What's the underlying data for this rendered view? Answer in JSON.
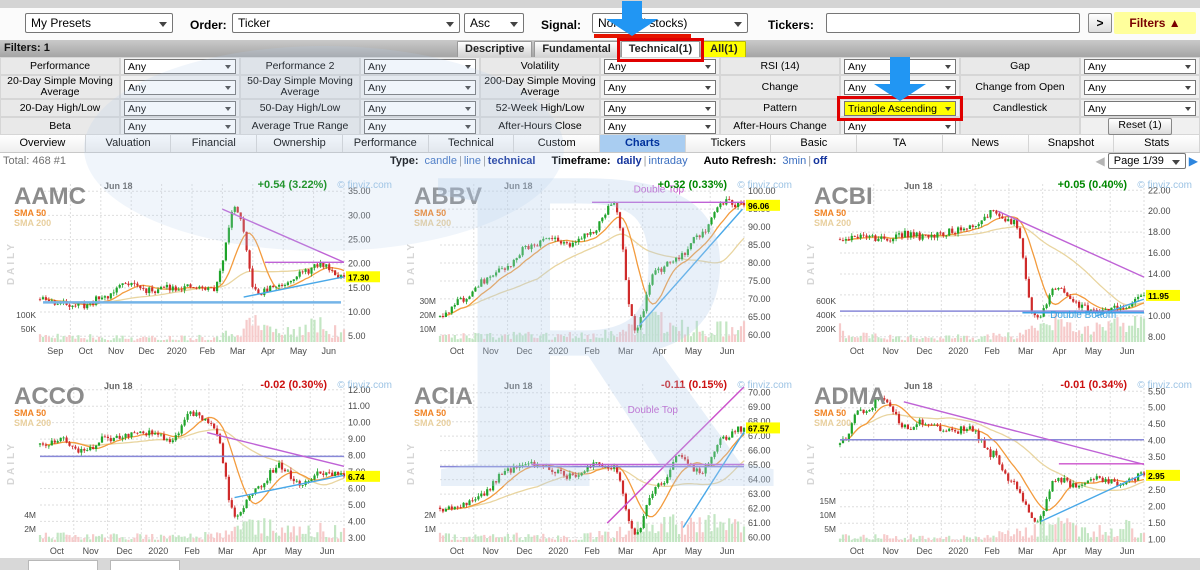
{
  "toolbar": {
    "presets": "My Presets",
    "order_label": "Order:",
    "order": "Ticker",
    "order_dir": "Asc",
    "signal_label": "Signal:",
    "signal": "None (all stocks)",
    "tickers_label": "Tickers:",
    "tickers_value": "",
    "go": ">",
    "filters_toggle": "Filters ▲"
  },
  "filters_bar": {
    "label": "Filters: 1",
    "tabs": [
      "Descriptive",
      "Fundamental",
      "Technical(1)",
      "All(1)"
    ],
    "active_tab": "Technical(1)",
    "yellow_tab": "All(1)"
  },
  "filter_grid": {
    "rows": [
      [
        {
          "label": "Performance",
          "value": "Any"
        },
        {
          "label": "Performance 2",
          "value": "Any"
        },
        {
          "label": "Volatility",
          "value": "Any"
        },
        {
          "label": "RSI (14)",
          "value": "Any"
        },
        {
          "label": "Gap",
          "value": "Any"
        }
      ],
      [
        {
          "label": "20-Day Simple Moving Average",
          "value": "Any"
        },
        {
          "label": "50-Day Simple Moving Average",
          "value": "Any"
        },
        {
          "label": "200-Day Simple Moving Average",
          "value": "Any"
        },
        {
          "label": "Change",
          "value": "Any"
        },
        {
          "label": "Change from Open",
          "value": "Any"
        }
      ],
      [
        {
          "label": "20-Day High/Low",
          "value": "Any"
        },
        {
          "label": "50-Day High/Low",
          "value": "Any"
        },
        {
          "label": "52-Week High/Low",
          "value": "Any"
        },
        {
          "label": "Pattern",
          "value": "Triangle Ascending",
          "selected": true
        },
        {
          "label": "Candlestick",
          "value": "Any"
        }
      ],
      [
        {
          "label": "Beta",
          "value": "Any"
        },
        {
          "label": "Average True Range",
          "value": "Any"
        },
        {
          "label": "After-Hours Close",
          "value": "Any"
        },
        {
          "label": "After-Hours Change",
          "value": "Any"
        },
        {
          "label": "",
          "reset": "Reset (1)"
        }
      ]
    ]
  },
  "nav_tabs": {
    "items": [
      "Overview",
      "Valuation",
      "Financial",
      "Ownership",
      "Performance",
      "Technical",
      "Custom",
      "Charts",
      "Tickers",
      "Basic",
      "TA",
      "News",
      "Snapshot",
      "Stats"
    ],
    "active": "Charts"
  },
  "status_bar": {
    "total": "Total: 468 #1",
    "groups": [
      {
        "label": "Type:",
        "options": [
          "candle",
          "line",
          "technical"
        ],
        "active": "technical"
      },
      {
        "label": "Timeframe:",
        "options": [
          "daily",
          "intraday"
        ],
        "active": "daily"
      },
      {
        "label": "Auto Refresh:",
        "options": [
          "3min",
          "off"
        ],
        "active": "off"
      }
    ],
    "page_value": "Page 1/39",
    "prev_arrow": "◀",
    "next_arrow": "▶"
  },
  "colors": {
    "tutorial_arrow": "#2196f3",
    "tutorial_box": "#e00000",
    "tutorial_underline": "#e51400",
    "pattern_highlight_bg": "#ffff00",
    "active_nav_tab_bg": "#a9cdf1",
    "link": "#3a6ec0",
    "up": "#008800",
    "down": "#cc1111",
    "brand": "#9cc3e4"
  },
  "chart_data": [
    {
      "type": "candlestick",
      "ticker": "AAMC",
      "date_label": "Jun 18",
      "change": "+0.54 (3.22%)",
      "direction": "up",
      "brand": "© finviz.com",
      "sma_labels": [
        "SMA 50",
        "SMA 200"
      ],
      "watermark": "DAILY",
      "last_price": "17.30",
      "last_value": 17.3,
      "ymin": 3.8,
      "ymax": 36.5,
      "price_ticks": [
        35,
        30,
        25,
        20,
        15,
        10,
        5
      ],
      "volume_ticks": [
        "100K",
        "50K"
      ],
      "months": [
        "Sep",
        "Oct",
        "Nov",
        "Dec",
        "2020",
        "Feb",
        "Mar",
        "Apr",
        "May",
        "Jun"
      ],
      "keypoints": [
        12.6,
        11.8,
        11.4,
        13.2,
        16.2,
        14.4,
        15.2,
        15.0,
        14.8,
        31.5,
        13.8,
        15.5,
        18.0,
        19.8,
        17.3
      ],
      "vol_profile": [
        0.25,
        0.3,
        0.25,
        0.2,
        0.2,
        0.25,
        0.3,
        1.0,
        0.4,
        0.9,
        0.45
      ],
      "seed": 11,
      "lines": [
        {
          "x1": 0.01,
          "y1": 12.0,
          "x2": 0.99,
          "y2": 12.0,
          "color": "#74b4e8",
          "w": 2.4
        },
        {
          "x1": 0.6,
          "y1": 31.3,
          "x2": 1.0,
          "y2": 20.3,
          "color": "#bf62d6",
          "w": 1.4
        },
        {
          "x1": 0.74,
          "y1": 20.3,
          "x2": 1.0,
          "y2": 20.3,
          "color": "#bf62d6",
          "w": 1.4
        },
        {
          "x1": 0.67,
          "y1": 13.1,
          "x2": 1.0,
          "y2": 17.3,
          "color": "#49a8e8",
          "w": 1.4
        }
      ],
      "labels": []
    },
    {
      "type": "candlestick",
      "ticker": "ABBV",
      "date_label": "Jun 18",
      "change": "+0.32 (0.33%)",
      "direction": "up",
      "brand": "© finviz.com",
      "sma_labels": [
        "SMA 50",
        "SMA 200"
      ],
      "watermark": "DAILY",
      "last_price": "96.06",
      "last_value": 96.06,
      "ymin": 58,
      "ymax": 102,
      "price_ticks": [
        100,
        95,
        90,
        85,
        80,
        75,
        70,
        65,
        60
      ],
      "volume_ticks": [
        "30M",
        "20M",
        "10M"
      ],
      "months": [
        "Oct",
        "Nov",
        "Dec",
        "2020",
        "Feb",
        "Mar",
        "Apr",
        "May",
        "Jun"
      ],
      "keypoints": [
        65,
        70,
        75,
        79,
        84,
        87,
        85,
        89,
        97,
        62,
        78,
        82,
        88,
        97,
        96.06
      ],
      "vol_profile": [
        0.35,
        0.3,
        0.3,
        0.35,
        0.3,
        0.35,
        0.45,
        1.0,
        0.8,
        0.7,
        0.75
      ],
      "seed": 22,
      "lines": [
        {
          "x1": 0.5,
          "y1": 96.9,
          "x2": 1.0,
          "y2": 96.9,
          "color": "#bf62d6",
          "w": 1.4
        },
        {
          "x1": 0.655,
          "y1": 62.5,
          "x2": 0.995,
          "y2": 95.0,
          "color": "#49a8e8",
          "w": 1.4
        }
      ],
      "labels": [
        {
          "text": "Double Top",
          "x": 0.72,
          "y": 99.6,
          "color": "#c455cc"
        }
      ]
    },
    {
      "type": "candlestick",
      "ticker": "ACBI",
      "date_label": "Jun 18",
      "change": "+0.05 (0.40%)",
      "direction": "up",
      "brand": "© finviz.com",
      "sma_labels": [
        "SMA 50",
        "SMA 200"
      ],
      "watermark": "DAILY",
      "last_price": "11.95",
      "last_value": 11.95,
      "ymin": 7.5,
      "ymax": 22.6,
      "price_ticks": [
        22,
        20,
        18,
        16,
        14,
        12,
        10,
        8
      ],
      "volume_ticks": [
        "600K",
        "400K",
        "200K"
      ],
      "months": [
        "Oct",
        "Nov",
        "Dec",
        "2020",
        "Feb",
        "Mar",
        "Apr",
        "May",
        "Jun"
      ],
      "keypoints": [
        17.2,
        17.6,
        17.3,
        17.8,
        17.5,
        18.0,
        18.5,
        19.8,
        19.0,
        9.8,
        12.6,
        11.0,
        10.3,
        10.8,
        11.95
      ],
      "vol_profile": [
        0.6,
        0.3,
        0.25,
        0.2,
        0.25,
        0.3,
        0.3,
        1.0,
        0.6,
        0.8,
        0.9
      ],
      "seed": 33,
      "lines": [
        {
          "x1": 0.52,
          "y1": 20.0,
          "x2": 1.0,
          "y2": 13.7,
          "color": "#bf62d6",
          "w": 1.4
        },
        {
          "x1": 0.0,
          "y1": 10.45,
          "x2": 1.0,
          "y2": 10.45,
          "color": "#8888d8",
          "w": 1.6
        },
        {
          "x1": 0.6,
          "y1": 10.3,
          "x2": 1.0,
          "y2": 10.3,
          "color": "#3da2e8",
          "w": 1.6
        },
        {
          "x1": 0.84,
          "y1": 9.95,
          "x2": 1.0,
          "y2": 11.6,
          "color": "#49a8e8",
          "w": 1.4
        }
      ],
      "labels": [
        {
          "text": "Double Bottom",
          "x": 0.8,
          "y": 9.8,
          "color": "#3a9fe0"
        }
      ]
    },
    {
      "type": "candlestick",
      "ticker": "ACCO",
      "date_label": "Jun 18",
      "change": "-0.02 (0.30%)",
      "direction": "down",
      "brand": "© finviz.com",
      "sma_labels": [
        "SMA 50",
        "SMA 200"
      ],
      "watermark": "DAILY",
      "last_price": "6.74",
      "last_value": 6.74,
      "ymin": 2.75,
      "ymax": 12.35,
      "price_ticks": [
        12,
        11,
        10,
        9,
        8,
        7,
        6,
        5,
        4,
        3
      ],
      "volume_ticks": [
        "4M",
        "2M"
      ],
      "months": [
        "Oct",
        "Nov",
        "Dec",
        "2020",
        "Feb",
        "Mar",
        "Apr",
        "May",
        "Jun"
      ],
      "keypoints": [
        8.6,
        8.9,
        8.3,
        9.0,
        9.2,
        9.4,
        9.0,
        10.6,
        9.8,
        4.3,
        6.0,
        7.4,
        6.2,
        7.0,
        6.74
      ],
      "vol_profile": [
        0.3,
        0.3,
        0.25,
        0.3,
        0.25,
        0.3,
        0.35,
        1.0,
        0.5,
        0.65,
        0.5
      ],
      "seed": 44,
      "lines": [
        {
          "x1": 0.0,
          "y1": 7.95,
          "x2": 1.0,
          "y2": 7.95,
          "color": "#8888d8",
          "w": 1.5
        },
        {
          "x1": 0.55,
          "y1": 9.4,
          "x2": 1.0,
          "y2": 7.35,
          "color": "#bf62d6",
          "w": 1.4
        },
        {
          "x1": 0.64,
          "y1": 5.45,
          "x2": 1.0,
          "y2": 6.8,
          "color": "#49a8e8",
          "w": 1.4
        }
      ],
      "labels": []
    },
    {
      "type": "candlestick",
      "ticker": "ACIA",
      "date_label": "Jun 18",
      "change": "-0.11 (0.15%)",
      "direction": "down",
      "brand": "© finviz.com",
      "sma_labels": [
        "SMA 50",
        "SMA 200"
      ],
      "watermark": "DAILY",
      "last_price": "67.57",
      "last_value": 67.57,
      "ymin": 59.7,
      "ymax": 70.6,
      "price_ticks": [
        70,
        69,
        68,
        67,
        66,
        65,
        64,
        63,
        62,
        61,
        60
      ],
      "volume_ticks": [
        "2M",
        "1M"
      ],
      "months": [
        "Oct",
        "Nov",
        "Dec",
        "2020",
        "Feb",
        "Mar",
        "Apr",
        "May",
        "Jun"
      ],
      "keypoints": [
        62.0,
        62.3,
        63.0,
        64.6,
        65.2,
        64.8,
        64.2,
        65.0,
        64.8,
        60.4,
        63.5,
        65.5,
        64.5,
        66.8,
        67.57
      ],
      "vol_profile": [
        0.3,
        0.25,
        0.3,
        0.3,
        0.25,
        0.3,
        0.5,
        1.0,
        0.8,
        0.9,
        0.85
      ],
      "seed": 55,
      "lines": [
        {
          "x1": 0.0,
          "y1": 64.9,
          "x2": 1.0,
          "y2": 64.9,
          "color": "#8888d8",
          "w": 1.5
        },
        {
          "x1": 0.3,
          "y1": 65.05,
          "x2": 1.0,
          "y2": 65.05,
          "color": "#bf62d6",
          "w": 1.5
        },
        {
          "x1": 0.55,
          "y1": 61.0,
          "x2": 1.0,
          "y2": 70.4,
          "color": "#cc52cc",
          "w": 1.5
        },
        {
          "x1": 0.8,
          "y1": 60.7,
          "x2": 1.0,
          "y2": 67.3,
          "color": "#49a8e8",
          "w": 1.4
        }
      ],
      "labels": [
        {
          "text": "Double Top",
          "x": 0.7,
          "y": 68.6,
          "color": "#c455cc"
        }
      ]
    },
    {
      "type": "candlestick",
      "ticker": "ADMA",
      "date_label": "Jun 18",
      "change": "-0.01 (0.34%)",
      "direction": "down",
      "brand": "© finviz.com",
      "sma_labels": [
        "SMA 50",
        "SMA 200"
      ],
      "watermark": "DAILY",
      "last_price": "2.95",
      "last_value": 2.95,
      "ymin": 0.93,
      "ymax": 5.72,
      "price_ticks": [
        5.5,
        5.0,
        4.5,
        4.0,
        3.5,
        3.0,
        2.5,
        2.0,
        1.5,
        1.0
      ],
      "volume_ticks": [
        "15M",
        "10M",
        "5M"
      ],
      "months": [
        "Oct",
        "Nov",
        "Dec",
        "2020",
        "Feb",
        "Mar",
        "Apr",
        "May",
        "Jun"
      ],
      "keypoints": [
        4.0,
        4.9,
        5.25,
        4.4,
        4.6,
        4.3,
        4.35,
        3.6,
        2.7,
        1.55,
        2.85,
        2.6,
        2.85,
        2.7,
        2.95
      ],
      "vol_profile": [
        0.25,
        0.3,
        0.25,
        0.25,
        0.2,
        0.3,
        0.5,
        1.0,
        0.7,
        0.8,
        0.6
      ],
      "seed": 66,
      "lines": [
        {
          "x1": 0.0,
          "y1": 4.03,
          "x2": 1.0,
          "y2": 4.03,
          "color": "#8888d8",
          "w": 1.5
        },
        {
          "x1": 0.21,
          "y1": 5.18,
          "x2": 1.0,
          "y2": 3.28,
          "color": "#bf62d6",
          "w": 1.4
        },
        {
          "x1": 0.72,
          "y1": 3.3,
          "x2": 1.0,
          "y2": 3.3,
          "color": "#cc52cc",
          "w": 1.4
        },
        {
          "x1": 0.66,
          "y1": 1.55,
          "x2": 1.0,
          "y2": 3.0,
          "color": "#49a8e8",
          "w": 1.4
        }
      ],
      "labels": []
    }
  ]
}
